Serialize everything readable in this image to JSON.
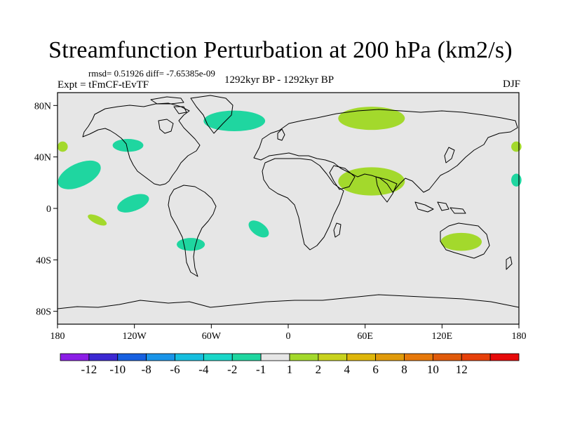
{
  "title": "Streamfunction Perturbation at 200 hPa (km2/s)",
  "stats": "rmsd= 0.51926 diff= -7.65385e-09",
  "experiment": "Expt = tFmCF-tEvTF",
  "period": "1292kyr BP - 1292kyr BP",
  "season": "DJF",
  "colors": {
    "ocean_background": "#e6e6e6",
    "coastline": "#000000",
    "anomaly_negative": "#1fd6a0",
    "anomaly_positive": "#a3d92c"
  },
  "chart_data": {
    "type": "heatmap",
    "projection": "cylindrical equidistant",
    "x_range": [
      -180,
      180
    ],
    "y_range": [
      -90,
      90
    ],
    "x_ticks": [
      {
        "value": -180,
        "label": "180"
      },
      {
        "value": -120,
        "label": "120W"
      },
      {
        "value": -60,
        "label": "60W"
      },
      {
        "value": 0,
        "label": "0"
      },
      {
        "value": 60,
        "label": "60E"
      },
      {
        "value": 120,
        "label": "120E"
      },
      {
        "value": 180,
        "label": "180"
      }
    ],
    "y_ticks": [
      {
        "value": 80,
        "label": "80N"
      },
      {
        "value": 40,
        "label": "40N"
      },
      {
        "value": 0,
        "label": "0"
      },
      {
        "value": -40,
        "label": "40S"
      },
      {
        "value": -80,
        "label": "80S"
      }
    ],
    "anomaly_regions": [
      {
        "sign": "negative",
        "lon": -42,
        "lat": 68,
        "dlon": 24,
        "dlat": 8,
        "rot": 0
      },
      {
        "sign": "positive",
        "lon": 65,
        "lat": 70,
        "dlon": 26,
        "dlat": 9,
        "rot": 0
      },
      {
        "sign": "negative",
        "lon": -125,
        "lat": 49,
        "dlon": 12,
        "dlat": 5,
        "rot": 0
      },
      {
        "sign": "positive",
        "lon": -176,
        "lat": 48,
        "dlon": 4,
        "dlat": 4,
        "rot": 0
      },
      {
        "sign": "positive",
        "lon": 178,
        "lat": 48,
        "dlon": 4,
        "dlat": 4,
        "rot": 0
      },
      {
        "sign": "negative",
        "lon": -163,
        "lat": 26,
        "dlon": 18,
        "dlat": 9,
        "rot": -25
      },
      {
        "sign": "negative",
        "lon": 178,
        "lat": 22,
        "dlon": 4,
        "dlat": 5,
        "rot": 0
      },
      {
        "sign": "positive",
        "lon": 65,
        "lat": 21,
        "dlon": 26,
        "dlat": 11,
        "rot": 0
      },
      {
        "sign": "negative",
        "lon": -121,
        "lat": 4,
        "dlon": 13,
        "dlat": 6,
        "rot": -20
      },
      {
        "sign": "positive",
        "lon": -149,
        "lat": -9,
        "dlon": 8,
        "dlat": 3,
        "rot": 25
      },
      {
        "sign": "negative",
        "lon": -23,
        "lat": -16,
        "dlon": 9,
        "dlat": 5,
        "rot": 35
      },
      {
        "sign": "negative",
        "lon": -76,
        "lat": -28,
        "dlon": 11,
        "dlat": 5,
        "rot": 0
      },
      {
        "sign": "positive",
        "lon": 135,
        "lat": -26,
        "dlon": 16,
        "dlat": 7,
        "rot": 0
      }
    ],
    "colorbar": {
      "colors": [
        "#8b1ee6",
        "#3c28d2",
        "#1760e0",
        "#1a94e8",
        "#16bede",
        "#1ad6c8",
        "#1fd6a0",
        "#e6e6e6",
        "#a3d92c",
        "#c8d21e",
        "#deb60a",
        "#e09a0a",
        "#e6780a",
        "#e05a0a",
        "#e6400a",
        "#e60a0a"
      ],
      "labels": [
        "-12",
        "-10",
        "-8",
        "-6",
        "-4",
        "-2",
        "-1",
        "1",
        "2",
        "4",
        "6",
        "8",
        "10",
        "12"
      ]
    }
  }
}
